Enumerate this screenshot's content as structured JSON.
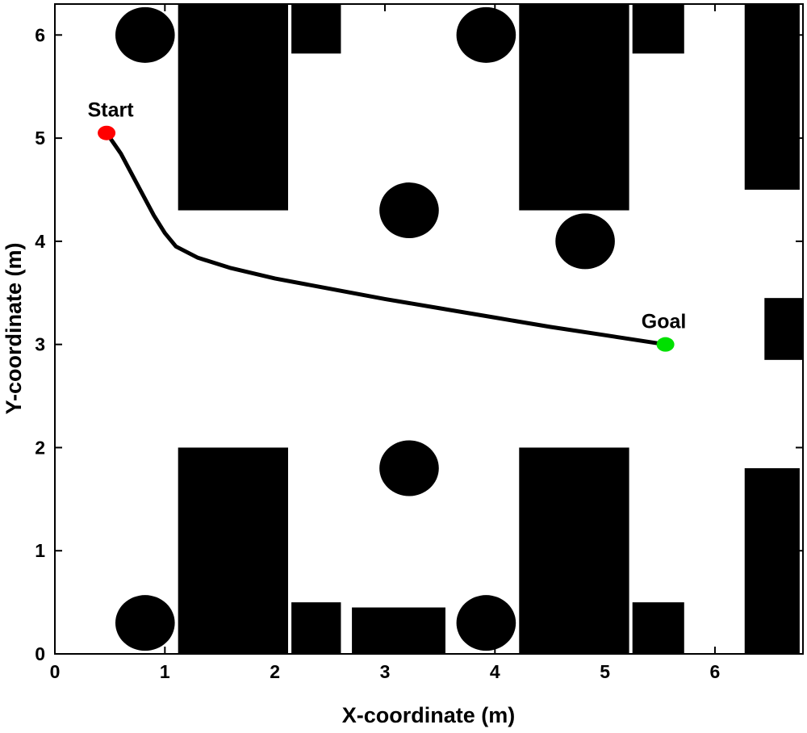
{
  "chart_data": {
    "type": "scatter",
    "title": "",
    "xlabel": "X-coordinate (m)",
    "ylabel": "Y-coordinate (m)",
    "xlim": [
      0,
      6.8
    ],
    "ylim": [
      0,
      6.3
    ],
    "xticks": [
      0,
      1,
      2,
      3,
      4,
      5,
      6
    ],
    "yticks": [
      0,
      1,
      2,
      3,
      4,
      5,
      6
    ],
    "grid": false,
    "colors": {
      "path": "#000000",
      "start": "#ff0000",
      "goal": "#00e000",
      "obstacle": "#000000",
      "axis": "#000000"
    },
    "start": {
      "label": "Start",
      "x": 0.47,
      "y": 5.05
    },
    "goal": {
      "label": "Goal",
      "x": 5.55,
      "y": 3.0
    },
    "path": {
      "name": "trajectory",
      "x": [
        0.47,
        0.6,
        0.75,
        0.9,
        1.0,
        1.1,
        1.3,
        1.6,
        2.0,
        2.5,
        3.0,
        3.5,
        4.0,
        4.5,
        5.0,
        5.55
      ],
      "y": [
        5.05,
        4.85,
        4.55,
        4.25,
        4.08,
        3.95,
        3.84,
        3.74,
        3.64,
        3.54,
        3.44,
        3.35,
        3.26,
        3.17,
        3.09,
        3.0
      ]
    },
    "rect_obstacles": [
      {
        "x0": 1.12,
        "x1": 2.12,
        "y0": 4.3,
        "y1": 6.3
      },
      {
        "x0": 2.15,
        "x1": 2.6,
        "y0": 5.82,
        "y1": 6.3
      },
      {
        "x0": 4.22,
        "x1": 5.22,
        "y0": 4.3,
        "y1": 6.3
      },
      {
        "x0": 5.25,
        "x1": 5.72,
        "y0": 5.82,
        "y1": 6.3
      },
      {
        "x0": 6.27,
        "x1": 6.77,
        "y0": 4.5,
        "y1": 6.3
      },
      {
        "x0": 6.45,
        "x1": 6.82,
        "y0": 2.85,
        "y1": 3.45
      },
      {
        "x0": 1.12,
        "x1": 2.12,
        "y0": 0,
        "y1": 2.0
      },
      {
        "x0": 2.15,
        "x1": 2.6,
        "y0": 0,
        "y1": 0.5
      },
      {
        "x0": 2.7,
        "x1": 3.55,
        "y0": 0,
        "y1": 0.45
      },
      {
        "x0": 4.22,
        "x1": 5.22,
        "y0": 0,
        "y1": 2.0
      },
      {
        "x0": 5.25,
        "x1": 5.72,
        "y0": 0,
        "y1": 0.5
      },
      {
        "x0": 6.27,
        "x1": 6.77,
        "y0": 0,
        "y1": 1.8
      }
    ],
    "circle_obstacles": [
      {
        "x": 0.82,
        "y": 6.0,
        "r": 0.27
      },
      {
        "x": 3.92,
        "y": 6.0,
        "r": 0.27
      },
      {
        "x": 3.22,
        "y": 4.3,
        "r": 0.27
      },
      {
        "x": 4.82,
        "y": 4.0,
        "r": 0.27
      },
      {
        "x": 3.22,
        "y": 1.8,
        "r": 0.27
      },
      {
        "x": 0.82,
        "y": 0.3,
        "r": 0.27
      },
      {
        "x": 3.92,
        "y": 0.3,
        "r": 0.27
      }
    ]
  }
}
